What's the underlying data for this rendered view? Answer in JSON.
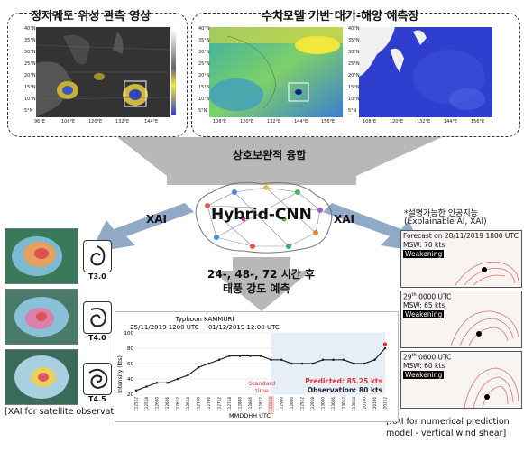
{
  "top_left_title": "정지궤도 위성 관측 영상",
  "top_right_title": "수치모델 기반 대기-해양 예측장",
  "fusion_label": "상호보완적 융합",
  "model_label": "Hybrid-CNN",
  "xai_left": "XAI",
  "xai_right": "XAI",
  "forecast_line1": "24-, 48-, 72 시간 후",
  "forecast_line2": "태풍 강도 예측",
  "xai_note_line1": "*설명가능한 인공지능",
  "xai_note_line2": "(Explainable AI, XAI)",
  "sat_map_ticks": {
    "lat": [
      "40°N",
      "35°N",
      "30°N",
      "25°N",
      "20°N",
      "15°N",
      "10°N",
      "5°N"
    ],
    "lon": [
      "96°E",
      "108°E",
      "120°E",
      "132°E",
      "144°E"
    ]
  },
  "model_map_ticks": {
    "lat": [
      "40°N",
      "35°N",
      "30°N",
      "25°N",
      "20°N",
      "15°N",
      "10°N",
      "5°N"
    ],
    "lon": [
      "108°E",
      "120°E",
      "132°E",
      "144°E",
      "156°E"
    ]
  },
  "ocean_map_ticks": {
    "lat": [
      "40°N",
      "35°N",
      "30°N",
      "25°N",
      "20°N",
      "15°N",
      "10°N",
      "5°N"
    ],
    "lon": [
      "108°E",
      "120°E",
      "132°E",
      "144°E",
      "156°E"
    ]
  },
  "satellite_xai": {
    "items": [
      {
        "t_label": "T3.0"
      },
      {
        "t_label": "T4.0"
      },
      {
        "t_label": "T4.5"
      }
    ],
    "caption": "[XAI for satellite observation]"
  },
  "nwp_xai": {
    "panels": [
      {
        "line1": "Forecast on 28/11/2019 1800 UTC",
        "line2": "MSW: 70 kts",
        "tag": "Weakening"
      },
      {
        "line1_main": "29",
        "line1_sup": "th",
        "line1_rest": " 0000 UTC",
        "line2": "MSW: 65 kts",
        "tag": "Weakening"
      },
      {
        "line1_main": "29",
        "line1_sup": "th",
        "line1_rest": " 0600 UTC",
        "line2": "MSW: 60 kts",
        "tag": "Weakening"
      }
    ],
    "caption_line1": "[XAI for numerical prediction",
    "caption_line2": "model - vertical wind shear]"
  },
  "colors": {
    "arrow_gray": "#b8b8b8",
    "arrow_blue": "#8fa9c7",
    "observed_line": "#222222",
    "predicted_point": "#e03030",
    "standard_time": "#e03030",
    "model_field_blue": "#2e3ecf",
    "model_field_yellow": "#f2e73b"
  },
  "chart_data": {
    "type": "line",
    "title": "Typhoon KAMMURI",
    "subtitle": "25/11/2019 1200 UTC ~ 01/12/2019 12:00 UTC",
    "xlabel": "MMDDHH UTC",
    "ylabel": "Intensity (kts)",
    "ylim": [
      20,
      100
    ],
    "yticks": [
      20,
      40,
      60,
      80,
      100
    ],
    "categories": [
      "112512",
      "112518",
      "112600",
      "112606",
      "112612",
      "112618",
      "112700",
      "112706",
      "112712",
      "112718",
      "112800",
      "112806",
      "112812",
      "112818",
      "112900",
      "112906",
      "112912",
      "112918",
      "113000",
      "113006",
      "113012",
      "113018",
      "120100",
      "120106",
      "120112"
    ],
    "series": [
      {
        "values": [
          25,
          30,
          35,
          35,
          40,
          45,
          55,
          60,
          65,
          70,
          70,
          70,
          70,
          65,
          65,
          60,
          60,
          60,
          65,
          65,
          65,
          60,
          60,
          65,
          80
        ]
      }
    ],
    "standard_index": 13,
    "standard_label_line1": "Standard",
    "standard_label_line2": "time",
    "predicted_value": 85.25,
    "predicted_label": "Predicted: 85.25 kts",
    "observation_label": "Observation: 80 kts"
  }
}
